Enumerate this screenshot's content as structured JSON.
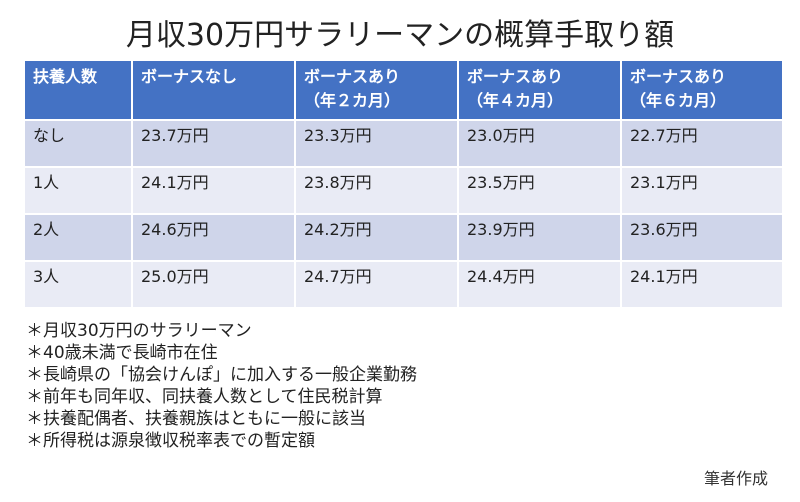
{
  "title": "月収30万円サラリーマンの概算手取り額",
  "table": {
    "headers": [
      {
        "line1": "扶養人数",
        "line2": ""
      },
      {
        "line1": "ボーナスなし",
        "line2": ""
      },
      {
        "line1": "ボーナスあり",
        "line2": "（年２カ月）"
      },
      {
        "line1": "ボーナスあり",
        "line2": "（年４カ月）"
      },
      {
        "line1": "ボーナスあり",
        "line2": "（年６カ月）"
      }
    ],
    "rows": [
      [
        "なし",
        "23.7万円",
        "23.3万円",
        "23.0万円",
        "22.7万円"
      ],
      [
        "1人",
        "24.1万円",
        "23.8万円",
        "23.5万円",
        "23.1万円"
      ],
      [
        "2人",
        "24.6万円",
        "24.2万円",
        "23.9万円",
        "23.6万円"
      ],
      [
        "3人",
        "25.0万円",
        "24.7万円",
        "24.4万円",
        "24.1万円"
      ]
    ]
  },
  "notes": [
    "＊月収30万円のサラリーマン",
    "＊40歳未満で長崎市在住",
    "＊長崎県の「協会けんぽ」に加入する一般企業勤務",
    "＊前年も同年収、同扶養人数として住民税計算",
    "＊扶養配偶者、扶養親族はともに一般に該当",
    "＊所得税は源泉徴収税率表での暫定額"
  ],
  "credit": "筆者作成",
  "colors": {
    "header_bg": "#4472c4",
    "row_odd": "#cfd5ea",
    "row_even": "#e9ebf5"
  }
}
